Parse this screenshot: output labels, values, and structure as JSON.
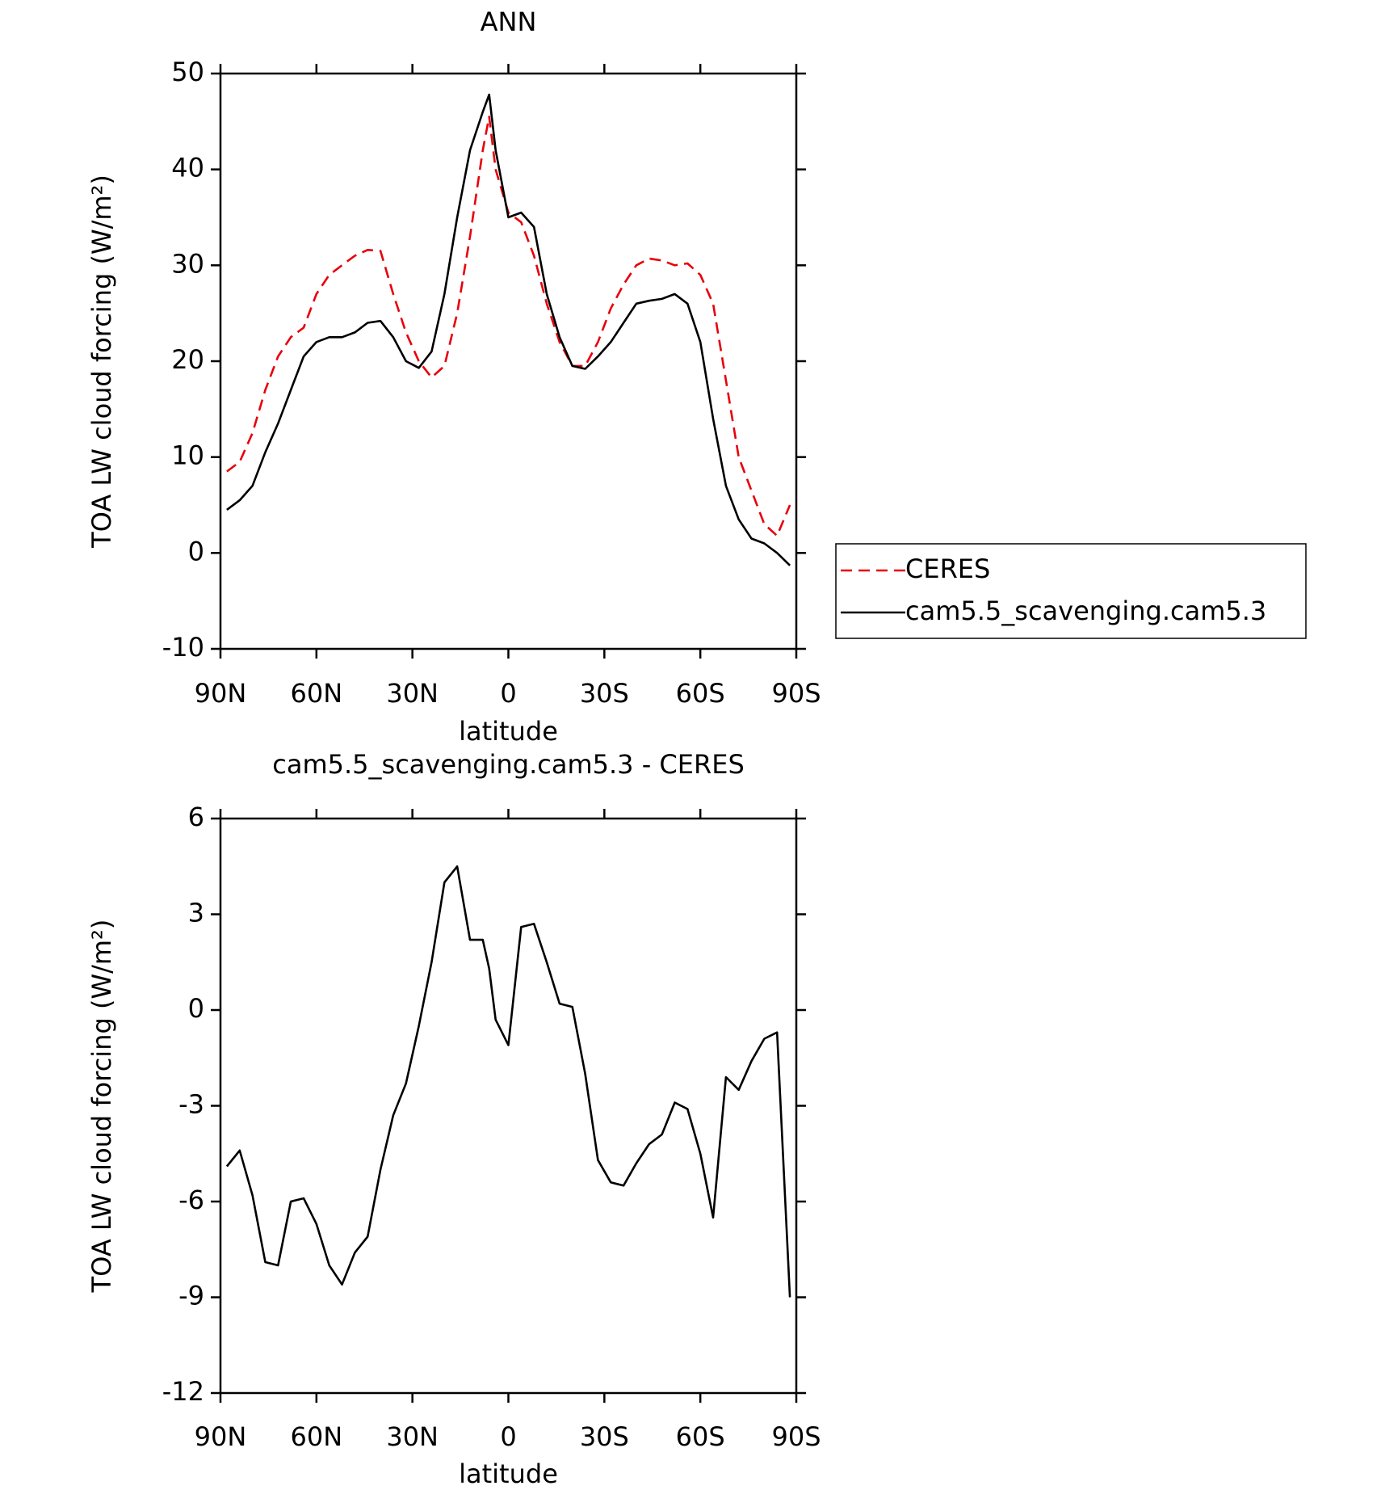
{
  "chart_data": [
    {
      "type": "line",
      "title": "ANN",
      "xlabel": "latitude",
      "ylabel": "TOA LW cloud forcing (W/m²)",
      "x": [
        88,
        84,
        80,
        76,
        72,
        68,
        64,
        60,
        56,
        52,
        48,
        44,
        40,
        36,
        32,
        28,
        24,
        20,
        16,
        12,
        8,
        6,
        4,
        0,
        -4,
        -8,
        -12,
        -16,
        -20,
        -24,
        -28,
        -32,
        -36,
        -40,
        -44,
        -48,
        -52,
        -56,
        -60,
        -64,
        -68,
        -72,
        -76,
        -80,
        -84,
        -88
      ],
      "xlim": [
        90,
        -90
      ],
      "xticks": [
        {
          "value": 90,
          "label": "90N"
        },
        {
          "value": 60,
          "label": "60N"
        },
        {
          "value": 30,
          "label": "30N"
        },
        0,
        {
          "value": -30,
          "label": "30S"
        },
        {
          "value": -60,
          "label": "60S"
        },
        {
          "value": -90,
          "label": "90S"
        }
      ],
      "ylim": [
        -10,
        50
      ],
      "yticks": [
        -10,
        0,
        10,
        20,
        30,
        40,
        50
      ],
      "legend": "right",
      "series": [
        {
          "name": "CERES",
          "color": "#e8000b",
          "dashed": true,
          "values": [
            8.5,
            9.5,
            12.5,
            17,
            20.5,
            22.5,
            23.5,
            27,
            29,
            30,
            31,
            31.6,
            31.5,
            27,
            23,
            20,
            18.3,
            19.5,
            25,
            33,
            42,
            45.5,
            40,
            35.5,
            34.5,
            31,
            26,
            22,
            19.5,
            19.5,
            22,
            25.5,
            28,
            30,
            30.7,
            30.5,
            30,
            30.2,
            29,
            26,
            18,
            10,
            6.5,
            3,
            1.8,
            5
          ]
        },
        {
          "name": "cam5.5_scavenging.cam5.3",
          "color": "#000000",
          "dashed": false,
          "values": [
            4.5,
            5.5,
            7,
            10.5,
            13.5,
            17,
            20.5,
            22,
            22.5,
            22.5,
            23,
            24,
            24.2,
            22.5,
            20,
            19.3,
            21,
            27,
            35,
            42,
            46,
            47.8,
            42,
            35,
            35.5,
            34,
            27,
            22.5,
            19.5,
            19.2,
            20.5,
            22,
            24,
            26,
            26.3,
            26.5,
            27,
            26,
            22,
            14,
            7,
            3.5,
            1.5,
            1,
            0,
            -1.3
          ]
        }
      ]
    },
    {
      "type": "line",
      "title": "cam5.5_scavenging.cam5.3 - CERES",
      "xlabel": "latitude",
      "ylabel": "TOA LW cloud forcing (W/m²)",
      "x": [
        88,
        84,
        80,
        76,
        72,
        68,
        64,
        60,
        56,
        52,
        48,
        44,
        40,
        36,
        32,
        28,
        24,
        20,
        16,
        12,
        8,
        6,
        4,
        0,
        -4,
        -8,
        -12,
        -16,
        -20,
        -24,
        -28,
        -32,
        -36,
        -40,
        -44,
        -48,
        -52,
        -56,
        -60,
        -64,
        -68,
        -72,
        -76,
        -80,
        -84,
        -88
      ],
      "xlim": [
        90,
        -90
      ],
      "xticks": [
        {
          "value": 90,
          "label": "90N"
        },
        {
          "value": 60,
          "label": "60N"
        },
        {
          "value": 30,
          "label": "30N"
        },
        0,
        {
          "value": -30,
          "label": "30S"
        },
        {
          "value": -60,
          "label": "60S"
        },
        {
          "value": -90,
          "label": "90S"
        }
      ],
      "ylim": [
        -12,
        6
      ],
      "yticks": [
        -12,
        -9,
        -6,
        -3,
        0,
        3,
        6
      ],
      "series": [
        {
          "color": "#000000",
          "dashed": false,
          "values": [
            -4.9,
            -4.4,
            -5.8,
            -7.9,
            -8,
            -6,
            -5.9,
            -6.7,
            -8,
            -8.6,
            -7.6,
            -7.1,
            -5,
            -3.3,
            -2.3,
            -0.5,
            1.5,
            4,
            4.5,
            2.2,
            2.2,
            1.3,
            -0.3,
            -1.1,
            2.6,
            2.7,
            1.5,
            0.2,
            0.1,
            -2,
            -4.7,
            -5.4,
            -5.5,
            -4.8,
            -4.2,
            -3.9,
            -2.9,
            -3.1,
            -4.5,
            -6.5,
            -2.1,
            -2.5,
            -1.6,
            -0.9,
            -0.7,
            -9
          ]
        }
      ]
    }
  ]
}
